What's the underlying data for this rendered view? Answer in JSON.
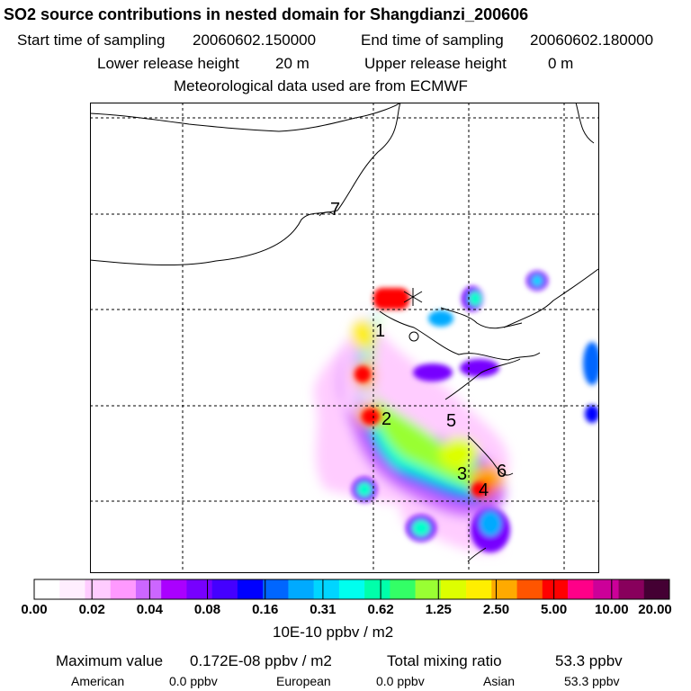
{
  "title": "SO2 source contributions in nested domain for Shangdianzi_200606",
  "sampling": {
    "start_label": "Start time of sampling",
    "start_value": "20060602.150000",
    "end_label": "End time of sampling",
    "end_value": "20060602.180000"
  },
  "release": {
    "lower_label": "Lower release height",
    "lower_value": "20 m",
    "upper_label": "Upper release height",
    "upper_value": "0 m"
  },
  "met_line": "Meteorological data used are from ECMWF",
  "map": {
    "labels": [
      "1",
      "2",
      "3",
      "4",
      "5",
      "6",
      "7"
    ],
    "hotspot_colors": [
      "#ff0000",
      "#ffee00",
      "#66ff33",
      "#00ffcc",
      "#00aaff",
      "#9900ff",
      "#ff99ff"
    ]
  },
  "colorbar": {
    "colors": [
      "#ffffff",
      "#ffeefe",
      "#ffccff",
      "#ff99ff",
      "#cc66ff",
      "#aa00ff",
      "#7700ff",
      "#4400ff",
      "#0000ff",
      "#0066ff",
      "#00aaff",
      "#00d5ff",
      "#00ffee",
      "#00ffaa",
      "#33ff66",
      "#99ff33",
      "#ddff00",
      "#ffee00",
      "#ffaa00",
      "#ff5500",
      "#ff0000",
      "#ff0088",
      "#cc0099",
      "#88005c",
      "#440033"
    ],
    "tick_labels": [
      "0.00",
      "0.02",
      "0.04",
      "0.08",
      "0.16",
      "0.31",
      "0.62",
      "1.25",
      "2.50",
      "5.00",
      "10.00",
      "20.00"
    ],
    "unit": "10E-10 ppbv / m2"
  },
  "summary": {
    "max_label": "Maximum value",
    "max_value": "0.172E-08 ppbv / m2",
    "total_label": "Total mixing ratio",
    "total_value": "53.3 ppbv",
    "regions": [
      {
        "name": "American",
        "value": "0.0 ppbv"
      },
      {
        "name": "European",
        "value": "0.0 ppbv"
      },
      {
        "name": "Asian",
        "value": "53.3 ppbv"
      }
    ]
  }
}
